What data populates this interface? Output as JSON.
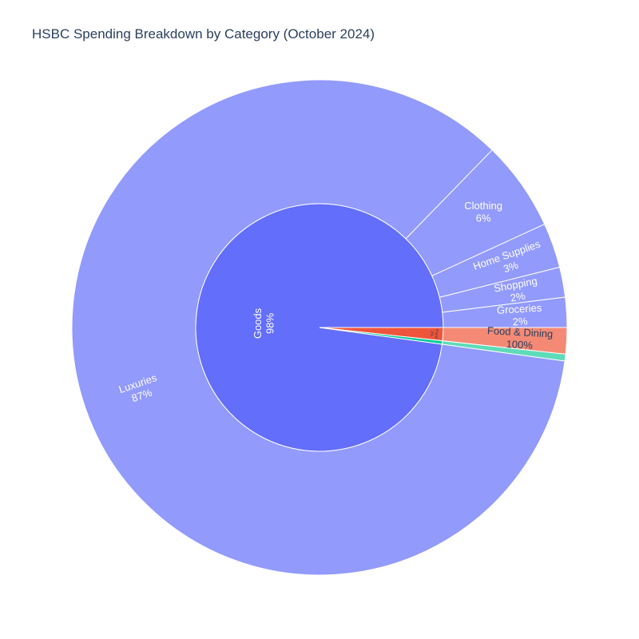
{
  "chart_data": {
    "type": "sunburst",
    "title": "HSBC Spending Breakdown by Category (October 2024)",
    "rings": {
      "inner": [
        {
          "label": "Goods",
          "percent_text": "98%",
          "share": 0.9784,
          "color": "#636efa"
        },
        {
          "label": "Food",
          "percent_text": "2%",
          "share": 0.0172,
          "color": "#ef553b"
        },
        {
          "label": "",
          "percent_text": "",
          "share": 0.0044,
          "color": "#00cc96"
        }
      ],
      "outer": [
        {
          "parent": "Goods",
          "label": "Luxuries",
          "percent_text": "87%",
          "share_of_parent": 0.87,
          "color": "#929afc"
        },
        {
          "parent": "Goods",
          "label": "Clothing",
          "percent_text": "6%",
          "share_of_parent": 0.06,
          "color": "#929afc"
        },
        {
          "parent": "Goods",
          "label": "Home Supplies",
          "percent_text": "3%",
          "share_of_parent": 0.03,
          "color": "#929afc"
        },
        {
          "parent": "Goods",
          "label": "Shopping",
          "percent_text": "2%",
          "share_of_parent": 0.02,
          "color": "#929afc"
        },
        {
          "parent": "Goods",
          "label": "Groceries",
          "percent_text": "2%",
          "share_of_parent": 0.02,
          "color": "#929afc"
        },
        {
          "parent": "Food",
          "label": "Food & Dining",
          "percent_text": "100%",
          "share_of_parent": 1.0,
          "color": "#f48a75"
        },
        {
          "parent": "",
          "label": "",
          "percent_text": "",
          "share_of_parent": 1.0,
          "color": "#5edbb8"
        }
      ]
    }
  }
}
